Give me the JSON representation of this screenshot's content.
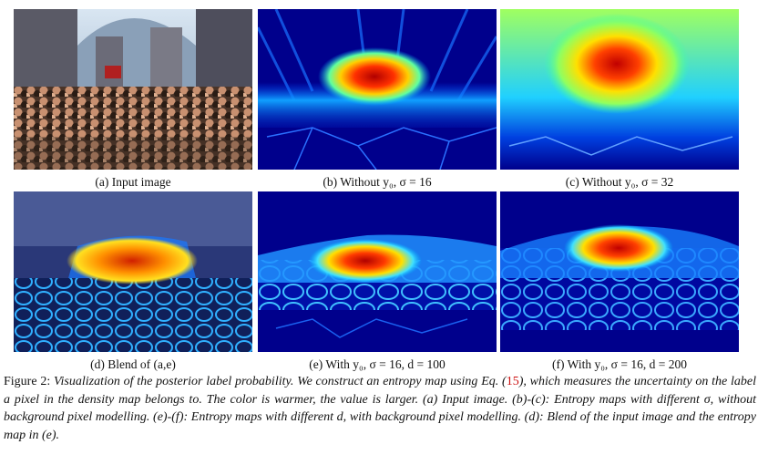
{
  "panels": [
    {
      "id": "a",
      "label": "(a) Input image"
    },
    {
      "id": "b",
      "label": "(b) Without y₀, σ = 16"
    },
    {
      "id": "c",
      "label": "(c) Without y₀, σ = 32"
    },
    {
      "id": "d",
      "label": "(d) Blend of (a,e)"
    },
    {
      "id": "e",
      "label": "(e) With y₀, σ = 16, d = 100"
    },
    {
      "id": "f",
      "label": "(f) With y₀, σ = 16, d = 200"
    }
  ],
  "caption": {
    "label": "Figure 2: ",
    "text_1": "Visualization of the posterior label probability. We construct an entropy map using Eq. (",
    "eq_ref": "15",
    "text_2": "), which measures the uncertainty on the label a pixel in the density map belongs to. The color is warmer, the value is larger. (a) Input image. (b)-(c): Entropy maps with different σ, without background pixel modelling. (e)-(f): Entropy maps with different d, with background pixel modelling. (d): Blend of the input image and the entropy map in (e)."
  },
  "colors": {
    "background": "#00008c",
    "hot": "#d80000",
    "warm": "#ffee00",
    "cool": "#00b4ff",
    "link": "#cc1010"
  }
}
